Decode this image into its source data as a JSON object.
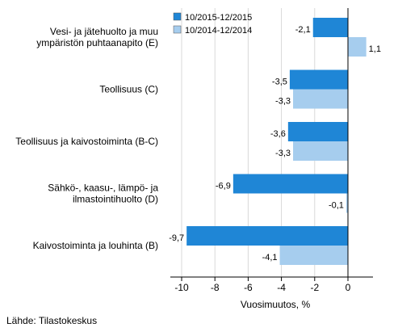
{
  "chart_data": {
    "type": "bar",
    "orientation": "horizontal",
    "categories": [
      [
        "Vesi- ja jätehuolto ja muu",
        "ympäristön puhtaanapito (E)"
      ],
      [
        "Teollisuus (C)"
      ],
      [
        "Teollisuus ja kaivostoiminta (B-C)"
      ],
      [
        "Sähkö-, kaasu-, lämpö- ja",
        "ilmastointihuolto (D)"
      ],
      [
        "Kaivostoiminta ja louhinta (B)"
      ]
    ],
    "series": [
      {
        "name": "10/2015-12/2015",
        "color": "#1f86d6",
        "values": [
          -2.1,
          -3.5,
          -3.6,
          -6.9,
          -9.7
        ],
        "labels": [
          "-2,1",
          "-3,5",
          "-3,6",
          "-6,9",
          "-9,7"
        ]
      },
      {
        "name": "10/2014-12/2014",
        "color": "#a6cdee",
        "values": [
          1.1,
          -3.3,
          -3.3,
          -0.1,
          -4.1
        ],
        "labels": [
          "1,1",
          "-3,3",
          "-3,3",
          "-0,1",
          "-4,1"
        ]
      }
    ],
    "xlabel": "Vuosimuutos, %",
    "xlim": [
      -11,
      2
    ],
    "xticks": [
      -10,
      -8,
      -6,
      -4,
      -2,
      0
    ],
    "xtick_labels": [
      "-10",
      "-8",
      "-6",
      "-4",
      "-2",
      "0"
    ],
    "grid": true,
    "legend_position": "top"
  },
  "source": "Lähde: Tilastokeskus"
}
